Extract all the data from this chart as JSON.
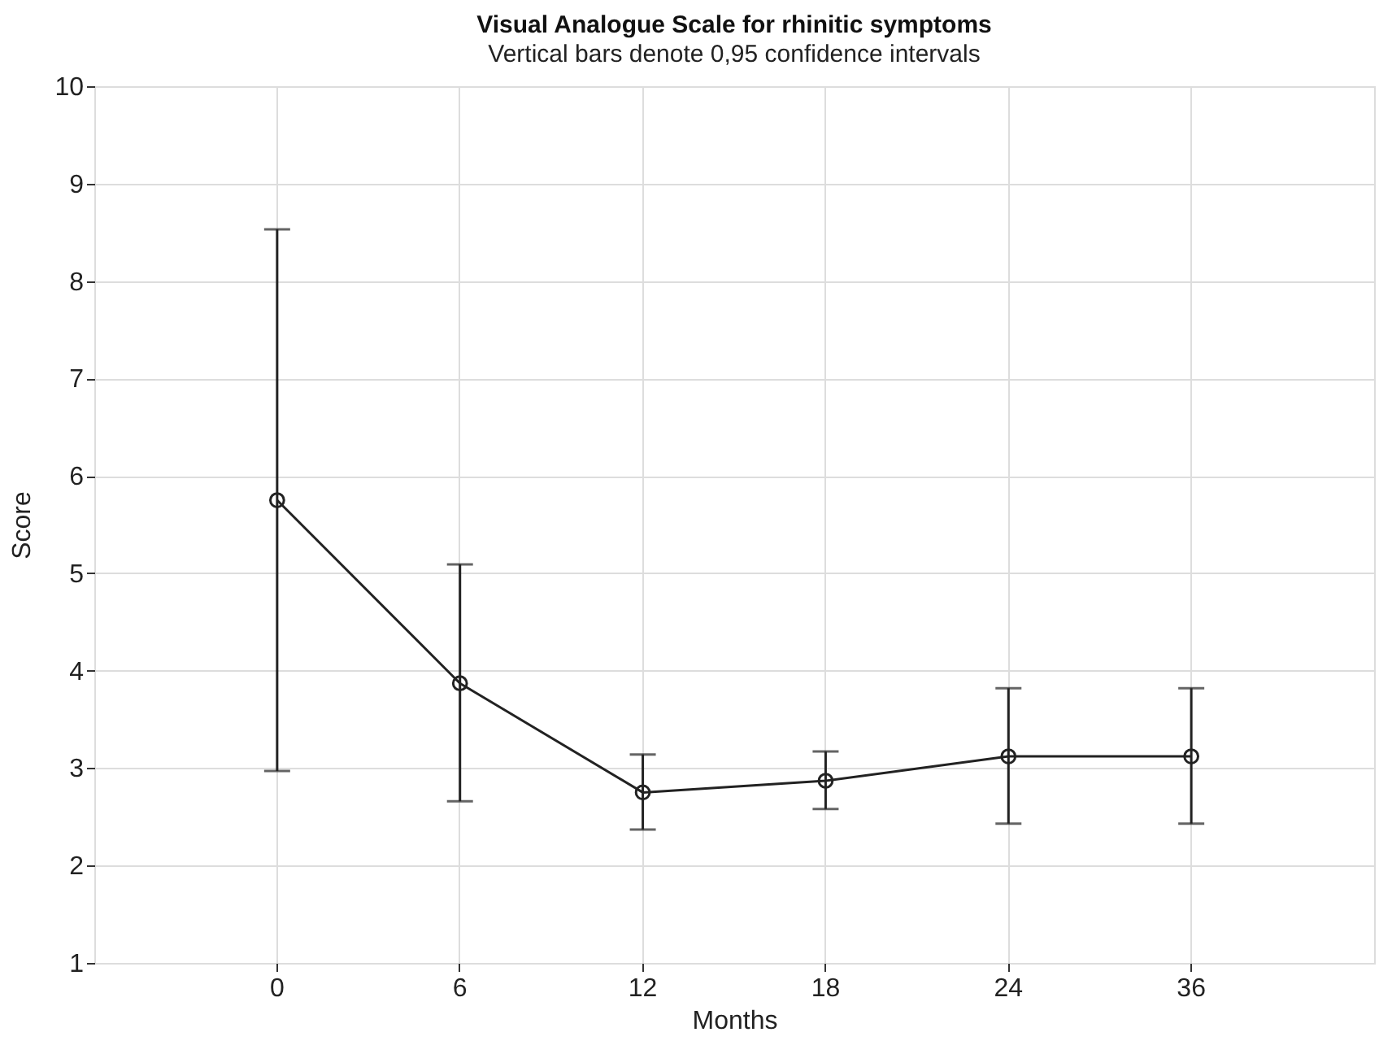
{
  "chart_data": {
    "type": "line",
    "title": "Visual Analogue Scale for rhinitic symptoms",
    "subtitle": "Vertical bars denote 0,95 confidence intervals",
    "xlabel": "Months",
    "ylabel": "Score",
    "categories": [
      "0",
      "6",
      "12",
      "18",
      "24",
      "36"
    ],
    "series": [
      {
        "color": "#222222",
        "values": [
          5.75,
          3.87,
          2.75,
          2.87,
          3.12,
          3.12
        ],
        "errors": [
          [
            2.97,
            8.53
          ],
          [
            2.66,
            5.09
          ],
          [
            2.37,
            3.14
          ],
          [
            2.58,
            3.17
          ],
          [
            2.43,
            3.82
          ],
          [
            2.43,
            3.82
          ]
        ]
      }
    ],
    "ylim": [
      1,
      10
    ],
    "yticks": [
      1,
      2,
      3,
      4,
      5,
      6,
      7,
      8,
      9,
      10
    ],
    "grid": true,
    "marker": "circle",
    "line_style": "solid"
  }
}
